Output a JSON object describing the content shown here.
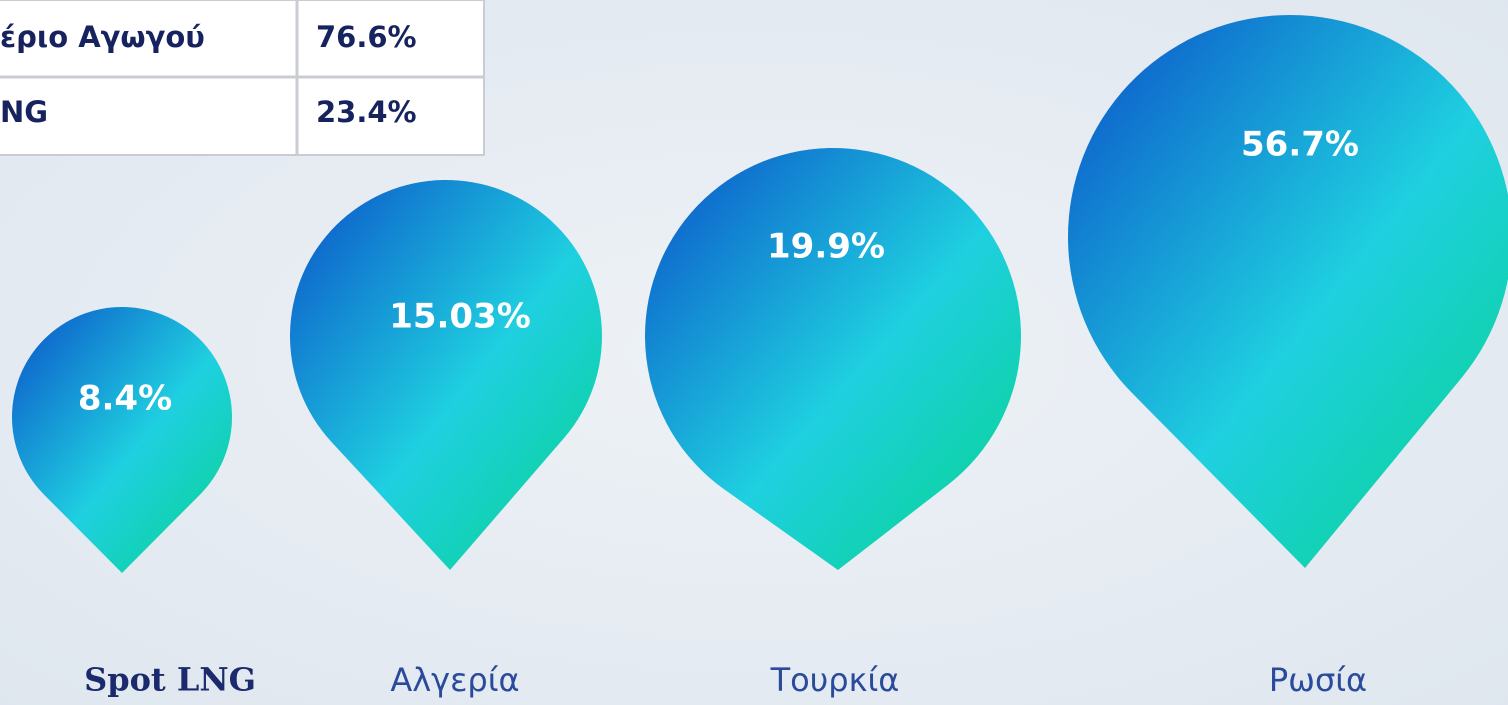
{
  "table": {
    "rows": [
      [
        "έριο Αγωγού",
        "76.6%"
      ],
      [
        "NG",
        "23.4%"
      ]
    ]
  },
  "pins": [
    {
      "label": "Spot LNG",
      "value": "8.4%"
    },
    {
      "label": "Αλγερία",
      "value": "15.03%"
    },
    {
      "label": "Τουρκία",
      "value": "19.9%"
    },
    {
      "label": "Ρωσία",
      "value": "56.7%"
    }
  ]
}
